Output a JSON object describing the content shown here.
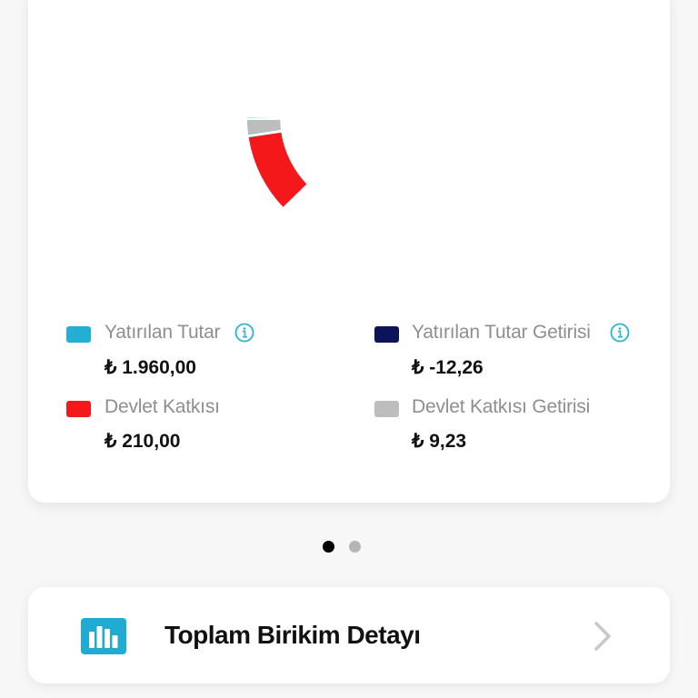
{
  "chart_data": {
    "type": "pie",
    "variant": "donut",
    "title": "",
    "categories": [
      "Yatırılan Tutar",
      "Yatırılan Tutar Getirisi",
      "Devlet Katkısı",
      "Devlet Katkısı Getirisi"
    ],
    "values": [
      1960.0,
      -12.26,
      210.0,
      9.23
    ],
    "colors": [
      "#23afd4",
      "#0b1459",
      "#f5181b",
      "#bdbdbd"
    ],
    "legend_position": "bottom",
    "visible_segments": [
      {
        "name": "Yatırılan Tutar",
        "color": "#23afd4",
        "start_deg": 227,
        "end_deg": 180
      },
      {
        "name": "Devlet Katkısı Getirisi",
        "color": "#bdbdbd",
        "start_deg": 182,
        "end_deg": 191
      },
      {
        "name": "Devlet Katkısı",
        "color": "#f5181b",
        "start_deg": 193,
        "end_deg": 225
      }
    ]
  },
  "legend": [
    {
      "label": "Yatırılan Tutar",
      "value": "₺ 1.960,00",
      "color": "#23afd4",
      "info": true
    },
    {
      "label": "Yatırılan Tutar Getirisi",
      "value": "₺ -12,26",
      "color": "#0b1459",
      "info": true
    },
    {
      "label": "Devlet Katkısı",
      "value": "₺ 210,00",
      "color": "#f5181b",
      "info": false
    },
    {
      "label": "Devlet Katkısı Getirisi",
      "value": "₺ 9,23",
      "color": "#bdbdbd",
      "info": false
    }
  ],
  "pager": {
    "pages": 2,
    "active": 1,
    "active_color": "#000000",
    "inactive_color": "#b5b5b5"
  },
  "detail_row": {
    "title": "Toplam Birikim Detayı",
    "icon": "bar-chart-icon",
    "icon_color": "#1fabd2",
    "chevron": "chevron-right-icon"
  }
}
